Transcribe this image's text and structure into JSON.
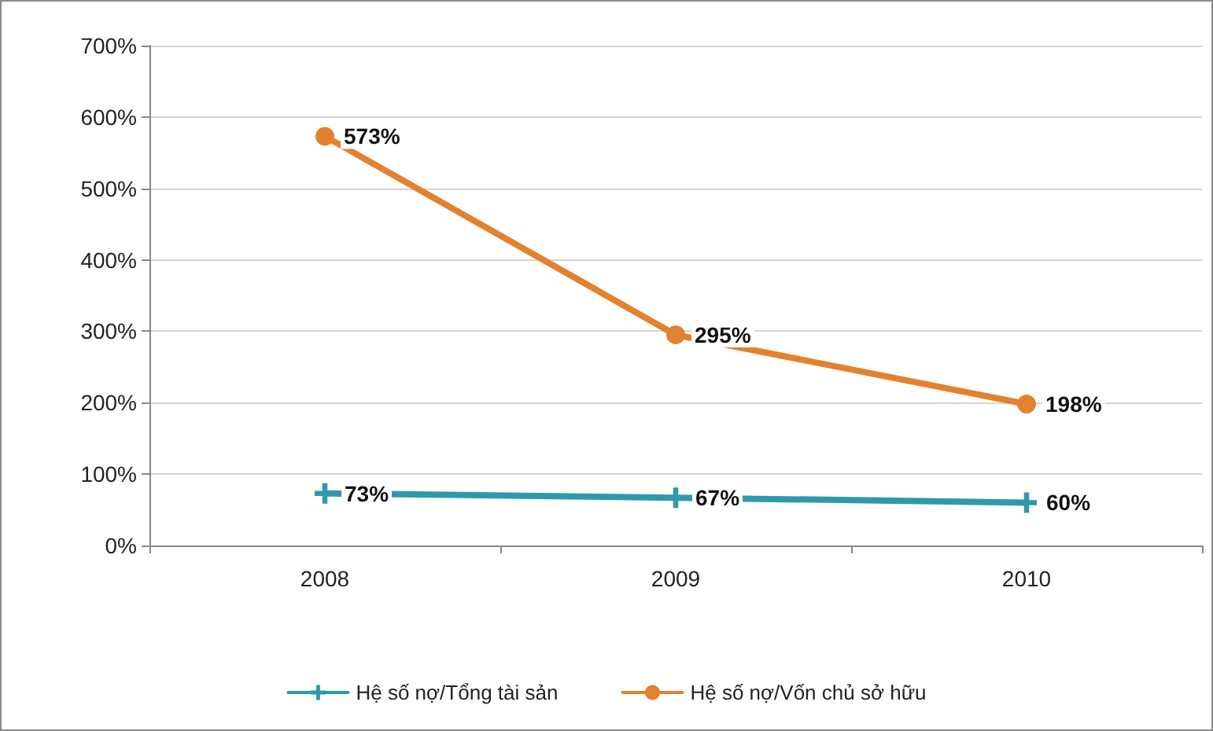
{
  "chart_data": {
    "type": "line",
    "categories": [
      "2008",
      "2009",
      "2010"
    ],
    "series": [
      {
        "name": "Hệ số nợ/Tổng tài sản",
        "color": "#2e9aa8",
        "marker": "cross",
        "values": [
          73,
          67,
          60
        ],
        "value_labels": [
          "73%",
          "67%",
          "60%"
        ]
      },
      {
        "name": "Hệ số nợ/Vốn chủ sở hữu",
        "color": "#e3812f",
        "marker": "circle",
        "values": [
          573,
          295,
          198
        ],
        "value_labels": [
          "573%",
          "295%",
          "198%"
        ]
      }
    ],
    "ylim": [
      0,
      700
    ],
    "yticks": [
      {
        "value": 0,
        "label": "0%"
      },
      {
        "value": 100,
        "label": "100%"
      },
      {
        "value": 200,
        "label": "200%"
      },
      {
        "value": 300,
        "label": "300%"
      },
      {
        "value": 400,
        "label": "400%"
      },
      {
        "value": 500,
        "label": "500%"
      },
      {
        "value": 600,
        "label": "600%"
      },
      {
        "value": 700,
        "label": "700%"
      }
    ],
    "grid": "y",
    "legend": "bottom",
    "line_style": "solid"
  }
}
